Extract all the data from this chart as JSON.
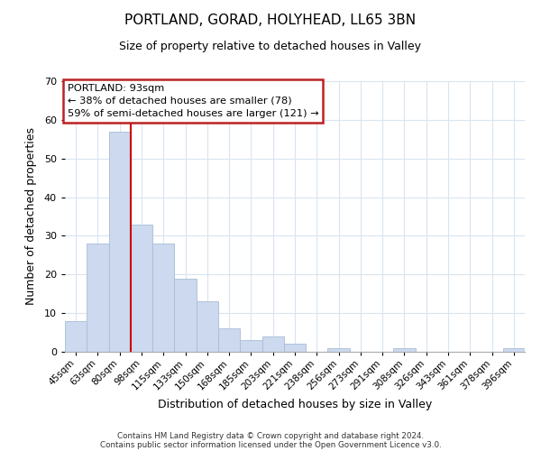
{
  "title": "PORTLAND, GORAD, HOLYHEAD, LL65 3BN",
  "subtitle": "Size of property relative to detached houses in Valley",
  "xlabel": "Distribution of detached houses by size in Valley",
  "ylabel": "Number of detached properties",
  "bar_color": "#ccd9ee",
  "bar_edge_color": "#a8bdd8",
  "categories": [
    "45sqm",
    "63sqm",
    "80sqm",
    "98sqm",
    "115sqm",
    "133sqm",
    "150sqm",
    "168sqm",
    "185sqm",
    "203sqm",
    "221sqm",
    "238sqm",
    "256sqm",
    "273sqm",
    "291sqm",
    "308sqm",
    "326sqm",
    "343sqm",
    "361sqm",
    "378sqm",
    "396sqm"
  ],
  "values": [
    8,
    28,
    57,
    33,
    28,
    19,
    13,
    6,
    3,
    4,
    2,
    0,
    1,
    0,
    0,
    1,
    0,
    0,
    0,
    0,
    1
  ],
  "ylim": [
    0,
    70
  ],
  "yticks": [
    0,
    10,
    20,
    30,
    40,
    50,
    60,
    70
  ],
  "property_size_label": "PORTLAND: 93sqm",
  "annotation_line1": "← 38% of detached houses are smaller (78)",
  "annotation_line2": "59% of semi-detached houses are larger (121) →",
  "vline_color": "#cc0000",
  "vline_x_index": 2,
  "footer_line1": "Contains HM Land Registry data © Crown copyright and database right 2024.",
  "footer_line2": "Contains public sector information licensed under the Open Government Licence v3.0.",
  "background_color": "#ffffff",
  "grid_color": "#d8e4f0"
}
